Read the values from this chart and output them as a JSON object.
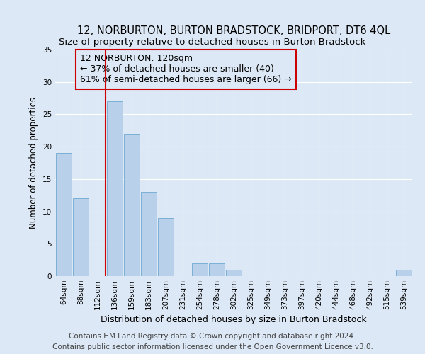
{
  "title": "12, NORBURTON, BURTON BRADSTOCK, BRIDPORT, DT6 4QL",
  "subtitle": "Size of property relative to detached houses in Burton Bradstock",
  "xlabel": "Distribution of detached houses by size in Burton Bradstock",
  "ylabel": "Number of detached properties",
  "footer_line1": "Contains HM Land Registry data © Crown copyright and database right 2024.",
  "footer_line2": "Contains public sector information licensed under the Open Government Licence v3.0.",
  "annotation_line1": "12 NORBURTON: 120sqm",
  "annotation_line2": "← 37% of detached houses are smaller (40)",
  "annotation_line3": "61% of semi-detached houses are larger (66) →",
  "bar_labels": [
    "64sqm",
    "88sqm",
    "112sqm",
    "136sqm",
    "159sqm",
    "183sqm",
    "207sqm",
    "231sqm",
    "254sqm",
    "278sqm",
    "302sqm",
    "325sqm",
    "349sqm",
    "373sqm",
    "397sqm",
    "420sqm",
    "444sqm",
    "468sqm",
    "492sqm",
    "515sqm",
    "539sqm"
  ],
  "bar_values": [
    19,
    12,
    0,
    27,
    22,
    13,
    9,
    0,
    2,
    2,
    1,
    0,
    0,
    0,
    0,
    0,
    0,
    0,
    0,
    0,
    1
  ],
  "bar_color": "#b8d0ea",
  "bar_edge_color": "#7aafd4",
  "background_color": "#dce8f5",
  "property_line_index": 2,
  "property_line_color": "#cc0000",
  "ylim": [
    0,
    35
  ],
  "yticks": [
    0,
    5,
    10,
    15,
    20,
    25,
    30,
    35
  ],
  "title_fontsize": 10.5,
  "subtitle_fontsize": 9.5,
  "xlabel_fontsize": 9,
  "ylabel_fontsize": 8.5,
  "tick_fontsize": 7.5,
  "annotation_fontsize": 9,
  "footer_fontsize": 7.5
}
